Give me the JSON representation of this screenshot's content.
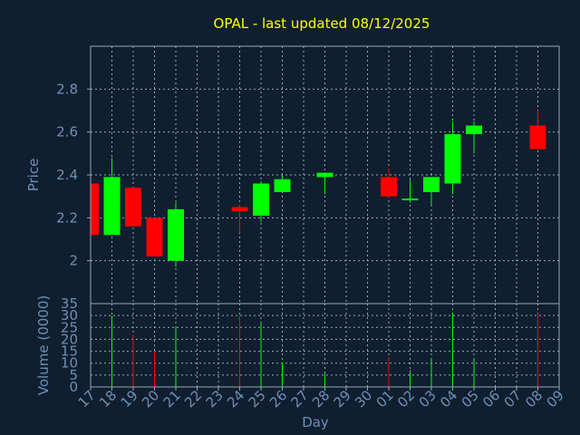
{
  "chart_data": {
    "type": "candlestick",
    "title": "OPAL - last updated 08/12/2025",
    "price_axis": {
      "label": "Price",
      "ylim": [
        1.8,
        3.0
      ],
      "ticks": [
        2,
        2.2,
        2.4,
        2.6,
        2.8
      ],
      "tick_labels": [
        "2",
        "2.2",
        "2.4",
        "2.6",
        "2.8"
      ]
    },
    "volume_axis": {
      "label": "Volume (0000)",
      "ylim": [
        0,
        35
      ],
      "ticks": [
        0,
        5,
        10,
        15,
        20,
        25,
        30,
        35
      ],
      "tick_labels": [
        "0",
        "5",
        "10",
        "15",
        "20",
        "25",
        "30",
        "35"
      ]
    },
    "xlabel": "Day",
    "x_tick_labels": [
      "17",
      "18",
      "19",
      "20",
      "21",
      "22",
      "23",
      "24",
      "25",
      "26",
      "27",
      "28",
      "29",
      "30",
      "01",
      "02",
      "03",
      "04",
      "05",
      "06",
      "07",
      "08",
      "09"
    ],
    "grid": true,
    "colors": {
      "background": "#0f1f30",
      "text": "#6f8fb4",
      "title": "#ffff00",
      "up": "#00ff00",
      "down": "#ff0000",
      "grid": "#9aa5b1",
      "frame": "#9aa5b1"
    },
    "candles": [
      {
        "day": "17",
        "open": 2.36,
        "close": 2.12,
        "high": 2.36,
        "low": 2.12,
        "volume": 0
      },
      {
        "day": "18",
        "open": 2.12,
        "close": 2.39,
        "high": 2.48,
        "low": 2.12,
        "volume": 30
      },
      {
        "day": "19",
        "open": 2.34,
        "close": 2.16,
        "high": 2.34,
        "low": 2.16,
        "volume": 22
      },
      {
        "day": "20",
        "open": 2.2,
        "close": 2.02,
        "high": 2.2,
        "low": 2.02,
        "volume": 15
      },
      {
        "day": "21",
        "open": 2.0,
        "close": 2.24,
        "high": 2.27,
        "low": 1.97,
        "volume": 25
      },
      {
        "day": "24",
        "open": 2.25,
        "close": 2.23,
        "high": 2.26,
        "low": 2.13,
        "volume": 30
      },
      {
        "day": "25",
        "open": 2.21,
        "close": 2.36,
        "high": 2.37,
        "low": 2.18,
        "volume": 27
      },
      {
        "day": "26",
        "open": 2.32,
        "close": 2.38,
        "high": 2.4,
        "low": 2.32,
        "volume": 10
      },
      {
        "day": "28",
        "open": 2.39,
        "close": 2.41,
        "high": 2.41,
        "low": 2.31,
        "volume": 6
      },
      {
        "day": "01",
        "open": 2.39,
        "close": 2.3,
        "high": 2.43,
        "low": 2.29,
        "volume": 12
      },
      {
        "day": "02",
        "open": 2.29,
        "close": 2.29,
        "high": 2.38,
        "low": 2.27,
        "volume": 7
      },
      {
        "day": "03",
        "open": 2.32,
        "close": 2.39,
        "high": 2.39,
        "low": 2.26,
        "volume": 12
      },
      {
        "day": "04",
        "open": 2.36,
        "close": 2.59,
        "high": 2.65,
        "low": 2.31,
        "volume": 31
      },
      {
        "day": "05",
        "open": 2.59,
        "close": 2.63,
        "high": 2.65,
        "low": 2.5,
        "volume": 12
      },
      {
        "day": "08",
        "open": 2.63,
        "close": 2.52,
        "high": 2.7,
        "low": 2.52,
        "volume": 31
      }
    ]
  }
}
